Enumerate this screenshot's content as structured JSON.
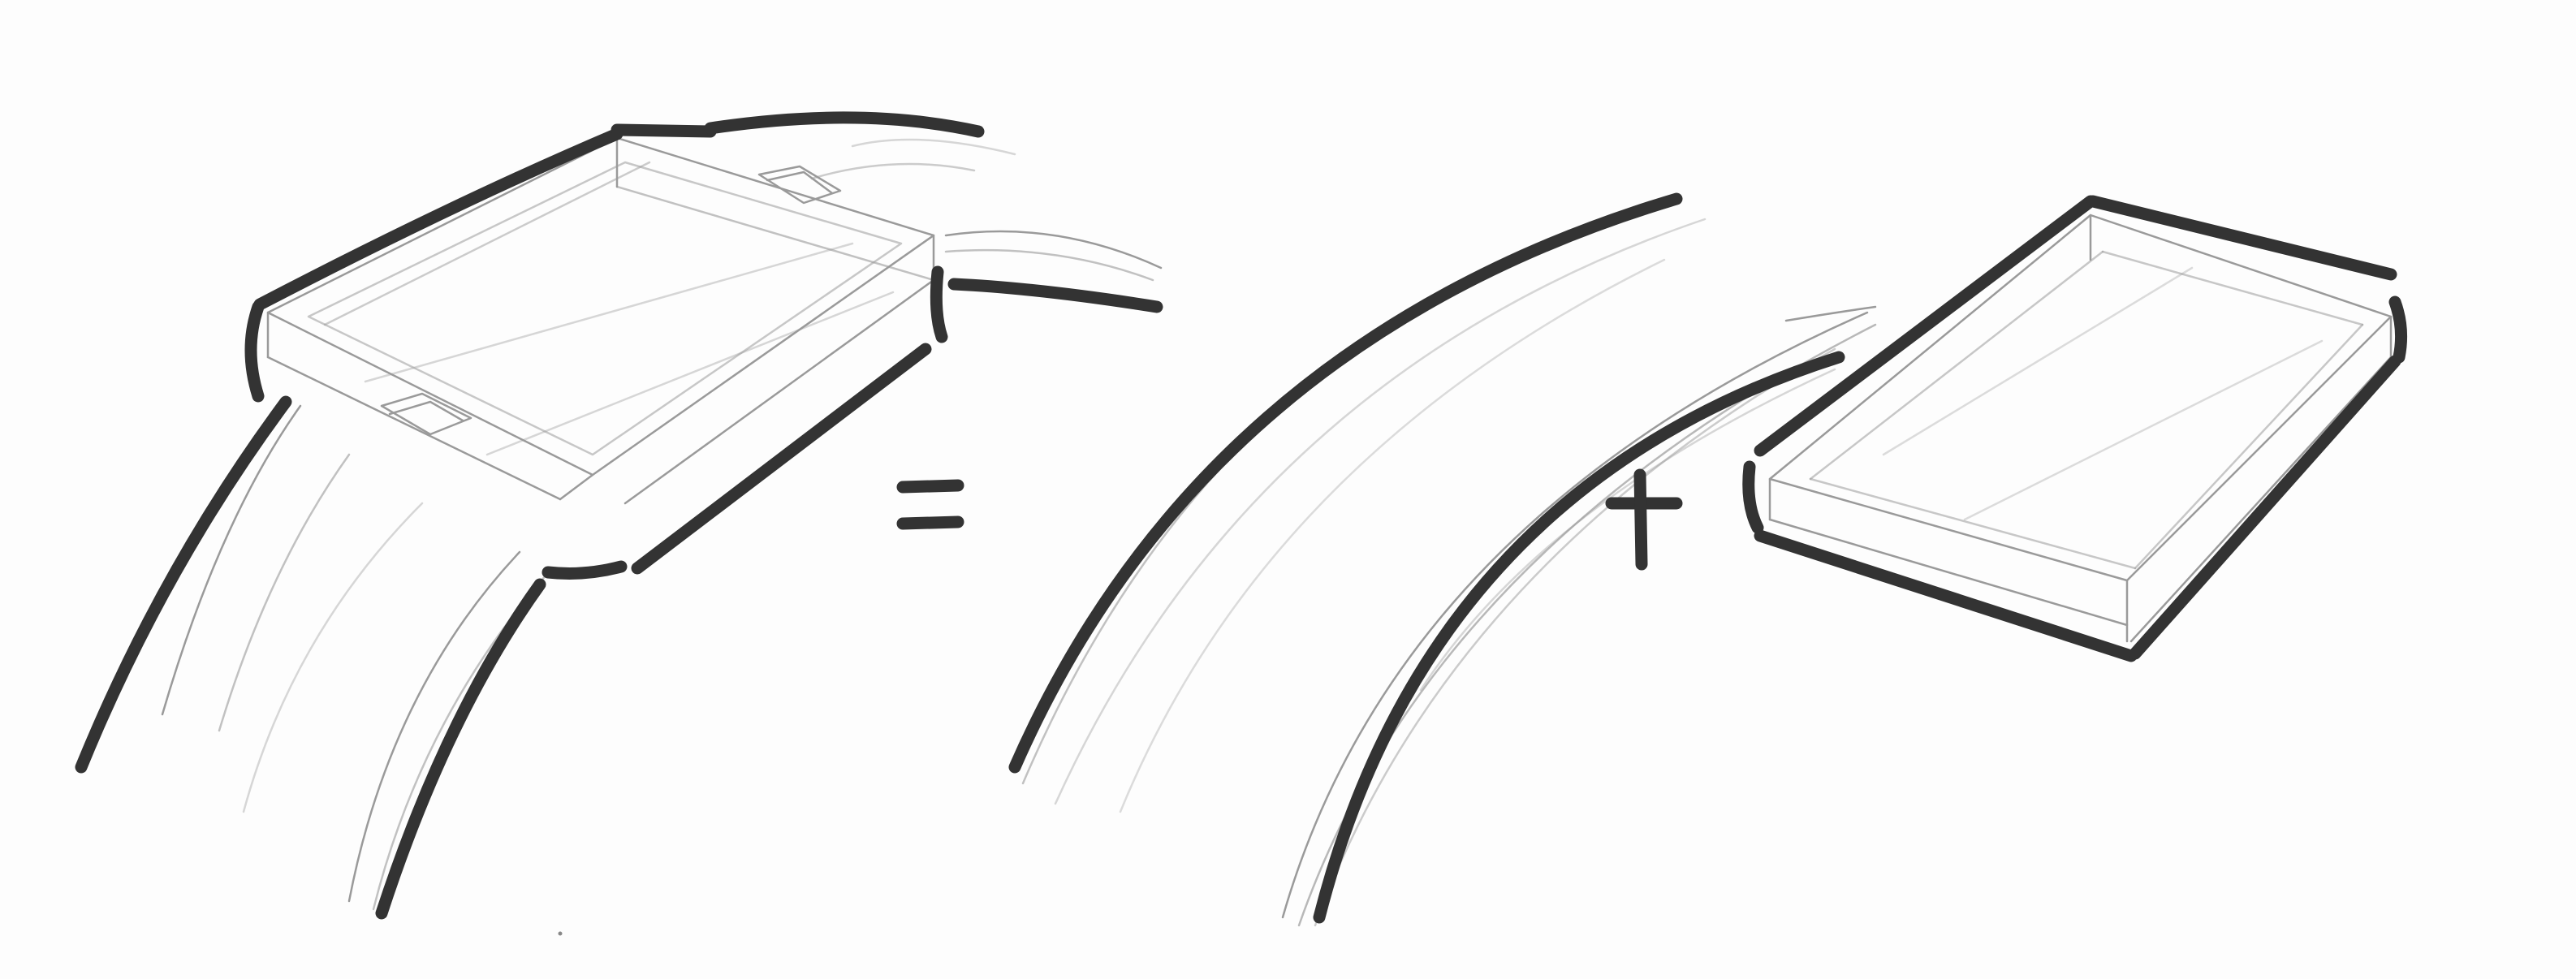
{
  "colors": {
    "background": "#fdfdfd",
    "marker": "#333333",
    "pencil": "#9a9a9a"
  },
  "icons": {
    "left": "smartwatch-sketch-icon",
    "equals": "equals-sign-icon",
    "band": "watch-band-sketch-icon",
    "plus": "plus-sign-icon",
    "module": "watch-module-box-sketch-icon"
  }
}
